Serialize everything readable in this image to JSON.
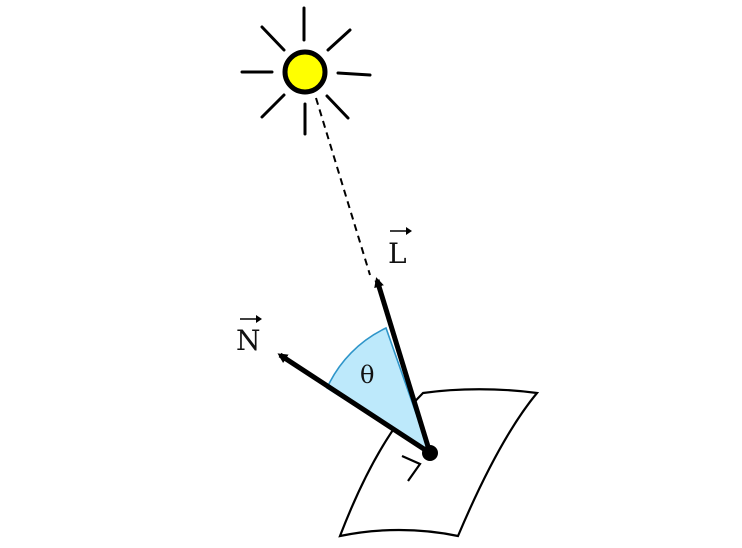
{
  "diagram": {
    "labels": {
      "light_vector": "L",
      "normal_vector": "N",
      "angle": "θ"
    },
    "colors": {
      "sun_fill": "#ffff00",
      "angle_fill": "#bde9fb",
      "angle_stroke": "#2e95c9",
      "ink": "#000000",
      "surface_fill": "#ffffff"
    },
    "icons": {
      "sun": "sun-icon",
      "right_angle": "right-angle-marker-icon"
    }
  }
}
